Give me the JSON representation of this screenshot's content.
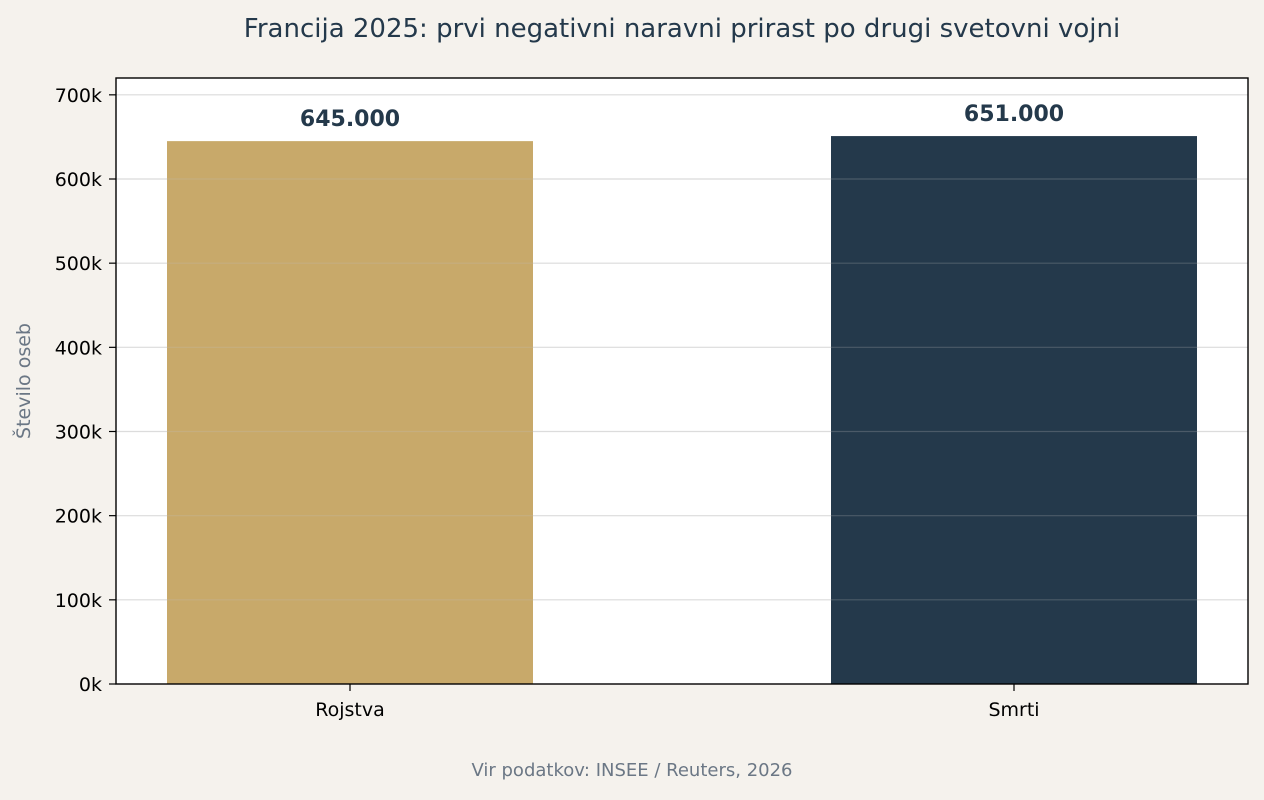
{
  "colors": {
    "background": "#f5f2ed",
    "plot_background": "#ffffff",
    "births": "#c8a96a",
    "deaths": "#24394b",
    "title": "#24394b",
    "muted": "#6b7785",
    "grid": "#e6e6e6"
  },
  "footer": {
    "source": "Vir podatkov: INSEE / Reuters, 2026"
  },
  "chart_data": {
    "type": "bar",
    "title": "Francija 2025: prvi negativni naravni prirast po drugi svetovni vojni",
    "xlabel": "",
    "ylabel": "Število oseb",
    "categories": [
      "Rojstva",
      "Smrti"
    ],
    "values": [
      645000,
      651000
    ],
    "value_labels": [
      "645.000",
      "651.000"
    ],
    "bar_colors": [
      "#c8a96a",
      "#24394b"
    ],
    "ylim": [
      0,
      720000
    ],
    "yticks": [
      0,
      100000,
      200000,
      300000,
      400000,
      500000,
      600000,
      700000
    ],
    "ytick_labels": [
      "0k",
      "100k",
      "200k",
      "300k",
      "400k",
      "500k",
      "600k",
      "700k"
    ],
    "grid": true,
    "legend": false
  }
}
